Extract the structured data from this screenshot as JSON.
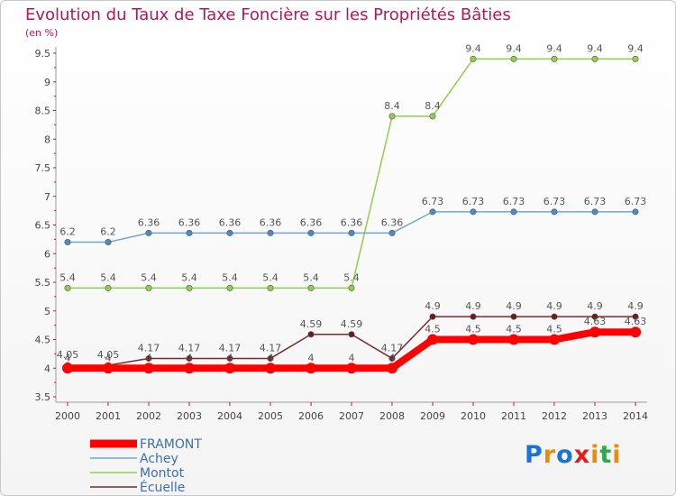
{
  "chart_data": {
    "type": "line",
    "title": "Evolution du Taux de Taxe Foncière sur les Propriétés Bâties",
    "unit": "(en %)",
    "x": [
      "2000",
      "2001",
      "2002",
      "2003",
      "2004",
      "2005",
      "2006",
      "2007",
      "2008",
      "2009",
      "2010",
      "2011",
      "2012",
      "2013",
      "2014"
    ],
    "ylim": [
      3.5,
      9.5
    ],
    "yticks": [
      "3.5",
      "4",
      "4.5",
      "5",
      "5.5",
      "6",
      "6.5",
      "7",
      "7.5",
      "8",
      "8.5",
      "9",
      "9.5"
    ],
    "grid": false,
    "legend_position": "bottom-left",
    "series": [
      {
        "name": "Montot",
        "color": "#8fd04a",
        "dot_color": "#8fd04a",
        "values": [
          5.4,
          5.4,
          5.4,
          5.4,
          5.4,
          5.4,
          5.4,
          5.4,
          8.4,
          8.4,
          9.4,
          9.4,
          9.4,
          9.4,
          9.4
        ],
        "labels": [
          "5.4",
          "5.4",
          "5.4",
          "5.4",
          "5.4",
          "5.4",
          "5.4",
          "5.4",
          "8.4",
          "8.4",
          "9.4",
          "9.4",
          "9.4",
          "9.4",
          "9.4"
        ]
      },
      {
        "name": "Achey",
        "color": "#6fa6d2",
        "dot_color": "#4a8cc8",
        "values": [
          6.2,
          6.2,
          6.36,
          6.36,
          6.36,
          6.36,
          6.36,
          6.36,
          6.36,
          6.73,
          6.73,
          6.73,
          6.73,
          6.73,
          6.73
        ],
        "labels": [
          "6.2",
          "6.2",
          "6.36",
          "6.36",
          "6.36",
          "6.36",
          "6.36",
          "6.36",
          "6.36",
          "6.73",
          "6.73",
          "6.73",
          "6.73",
          "6.73",
          "6.73"
        ]
      },
      {
        "name": "Écuelle",
        "color": "#7a2a2a",
        "dot_color": "#6b1d1d",
        "values": [
          4.05,
          4.05,
          4.17,
          4.17,
          4.17,
          4.17,
          4.59,
          4.59,
          4.17,
          4.9,
          4.9,
          4.9,
          4.9,
          4.9,
          4.9
        ],
        "labels": [
          "4.05",
          "4.05",
          "4.17",
          "4.17",
          "4.17",
          "4.17",
          "4.59",
          "4.59",
          "4.17",
          "4.9",
          "4.9",
          "4.9",
          "4.9",
          "4.9",
          "4.9"
        ]
      },
      {
        "name": "FRAMONT",
        "color": "#ff0000",
        "dot_color": "#ff0000",
        "values": [
          4,
          4,
          4,
          4,
          4,
          4,
          4,
          4,
          4,
          4.5,
          4.5,
          4.5,
          4.5,
          4.63,
          4.63
        ],
        "labels": [
          "4",
          "4",
          "4",
          "4",
          "4",
          "4",
          "4",
          "4",
          "4",
          "4.5",
          "4.5",
          "4.5",
          "4.5",
          "4.63",
          "4.63"
        ]
      }
    ],
    "legend": [
      "FRAMONT",
      "Achey",
      "Montot",
      "Écuelle"
    ]
  },
  "logo": {
    "letters": [
      "P",
      "r",
      "o",
      "x",
      "i",
      "t",
      "i"
    ],
    "colors": [
      "#1a73d9",
      "#f08a00",
      "#1a73d9",
      "#e02020",
      "#f08a00",
      "#2fa84a",
      "#f08a00"
    ]
  }
}
